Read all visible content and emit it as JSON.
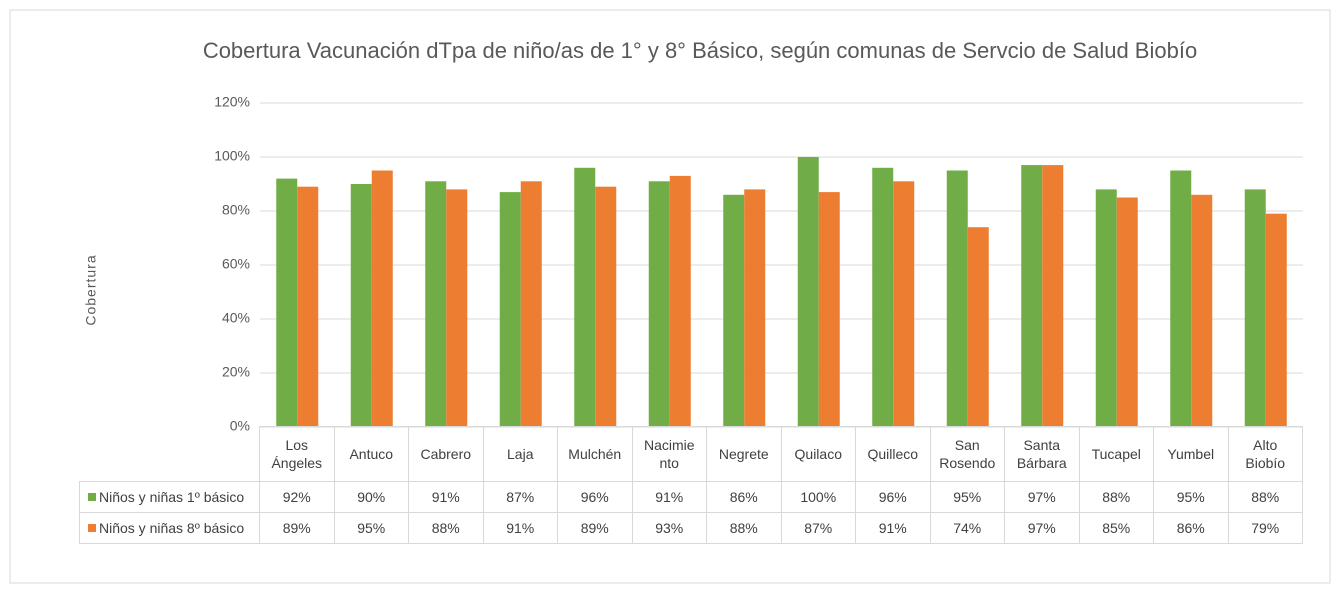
{
  "chart_data": {
    "type": "bar",
    "title": "Cobertura Vacunación dTpa de niño/as de 1° y 8° Básico, según comunas de  Servcio de Salud Biobío",
    "y_label": "Cobertura",
    "categories": [
      "Los\nÁngeles",
      "Antuco",
      "Cabrero",
      "Laja",
      "Mulchén",
      "Nacimie\nnto",
      "Negrete",
      "Quilaco",
      "Quilleco",
      "San\nRosendo",
      "Santa\nBárbara",
      "Tucapel",
      "Yumbel",
      "Alto\nBiobío"
    ],
    "series": [
      {
        "name": "Niños y niñas 1º básico",
        "color": "#70ad47",
        "values": [
          92,
          90,
          91,
          87,
          96,
          91,
          86,
          100,
          96,
          95,
          97,
          88,
          95,
          88
        ],
        "value_labels": [
          "92%",
          "90%",
          "91%",
          "87%",
          "96%",
          "91%",
          "86%",
          "100%",
          "96%",
          "95%",
          "97%",
          "88%",
          "95%",
          "88%"
        ]
      },
      {
        "name": "Niños y niñas 8º básico",
        "color": "#ed7d31",
        "values": [
          89,
          95,
          88,
          91,
          89,
          93,
          88,
          87,
          91,
          74,
          97,
          85,
          86,
          79
        ],
        "value_labels": [
          "89%",
          "95%",
          "88%",
          "91%",
          "89%",
          "93%",
          "88%",
          "87%",
          "91%",
          "74%",
          "97%",
          "85%",
          "86%",
          "79%"
        ]
      }
    ],
    "ylim": [
      0,
      120
    ],
    "yticks": [
      {
        "value": 0,
        "label": "0%"
      },
      {
        "value": 20,
        "label": "20%"
      },
      {
        "value": 40,
        "label": "40%"
      },
      {
        "value": 60,
        "label": "60%"
      },
      {
        "value": 80,
        "label": "80%"
      },
      {
        "value": 100,
        "label": "100%"
      },
      {
        "value": 120,
        "label": "120%"
      }
    ],
    "grid": true
  }
}
